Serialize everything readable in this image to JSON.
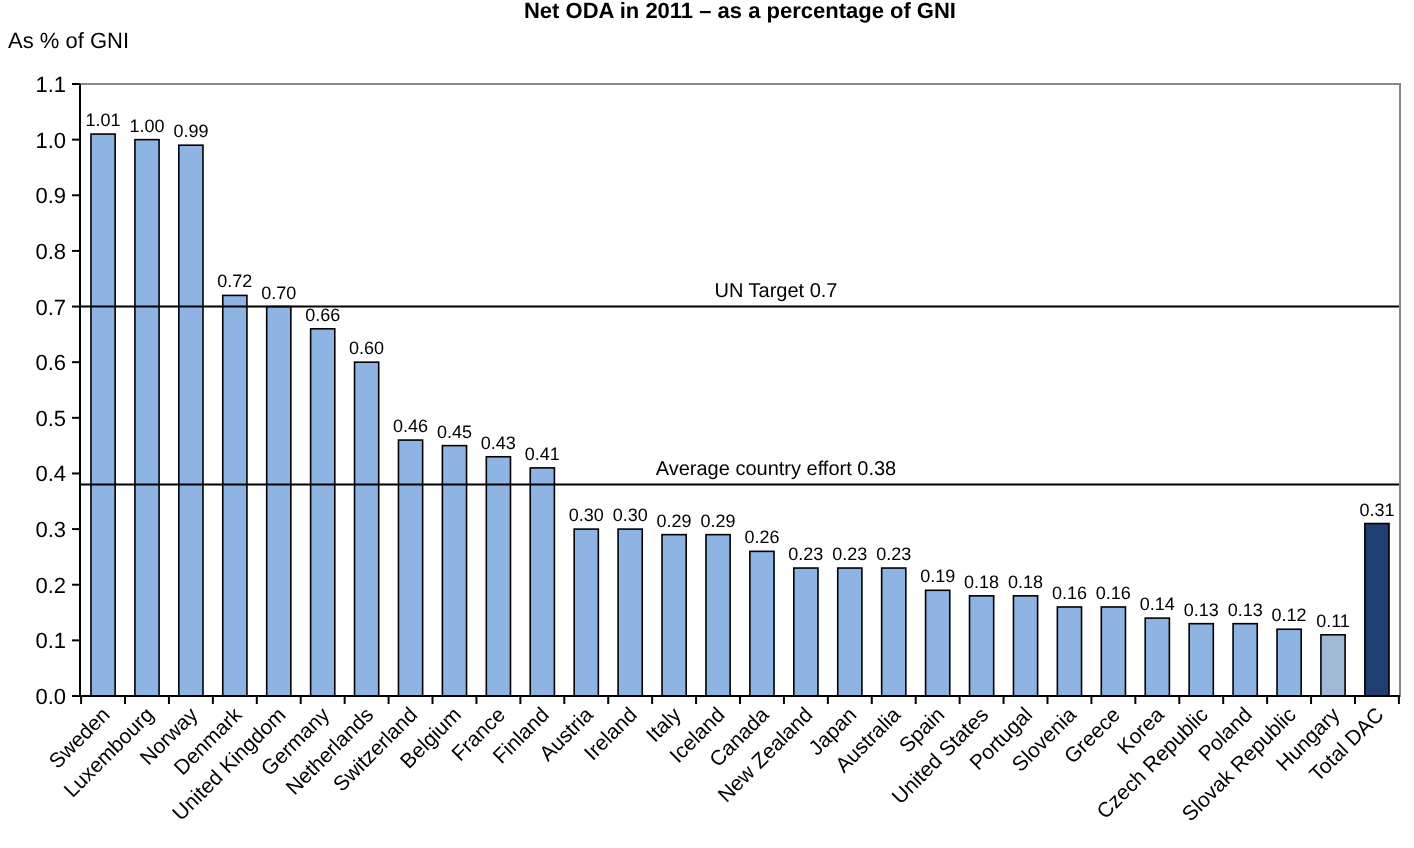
{
  "chart_data": {
    "type": "bar",
    "title": "Net ODA in 2011 – as a percentage of GNI",
    "ylabel": "As % of GNI",
    "categories": [
      "Sweden",
      "Luxembourg",
      "Norway",
      "Denmark",
      "United Kingdom",
      "Germany",
      "Netherlands",
      "Switzerland",
      "Belgium",
      "France",
      "Finland",
      "Austria",
      "Ireland",
      "Italy",
      "Iceland",
      "Canada",
      "New Zealand",
      "Japan",
      "Australia",
      "Spain",
      "United States",
      "Portugal",
      "Slovenia",
      "Greece",
      "Korea",
      "Czech Republic",
      "Poland",
      "Slovak Republic",
      "Hungary",
      "Total DAC"
    ],
    "values": [
      1.01,
      1.0,
      0.99,
      0.72,
      0.7,
      0.66,
      0.6,
      0.46,
      0.45,
      0.43,
      0.41,
      0.3,
      0.3,
      0.29,
      0.29,
      0.26,
      0.23,
      0.23,
      0.23,
      0.19,
      0.18,
      0.18,
      0.16,
      0.16,
      0.14,
      0.13,
      0.13,
      0.12,
      0.11,
      0.31
    ],
    "value_labels": [
      "1.01",
      "1.00",
      "0.99",
      "0.72",
      "0.70",
      "0.66",
      "0.60",
      "0.46",
      "0.45",
      "0.43",
      "0.41",
      "0.30",
      "0.30",
      "0.29",
      "0.29",
      "0.26",
      "0.23",
      "0.23",
      "0.23",
      "0.19",
      "0.18",
      "0.18",
      "0.16",
      "0.16",
      "0.14",
      "0.13",
      "0.13",
      "0.12",
      "0.11",
      "0.31"
    ],
    "colors": [
      "#8db4e2",
      "#8db4e2",
      "#8db4e2",
      "#8db4e2",
      "#8db4e2",
      "#8db4e2",
      "#8db4e2",
      "#8db4e2",
      "#8db4e2",
      "#8db4e2",
      "#8db4e2",
      "#8db4e2",
      "#8db4e2",
      "#8db4e2",
      "#8db4e2",
      "#8db4e2",
      "#8db4e2",
      "#8db4e2",
      "#8db4e2",
      "#8db4e2",
      "#8db4e2",
      "#8db4e2",
      "#8db4e2",
      "#8db4e2",
      "#8db4e2",
      "#8db4e2",
      "#8db4e2",
      "#8db4e2",
      "#9fb8d6",
      "#1f3f73"
    ],
    "ylim": [
      0,
      1.1
    ],
    "yticks": [
      {
        "value": 0,
        "label": "0.0"
      },
      {
        "value": 0.1,
        "label": "0.1"
      },
      {
        "value": 0.2,
        "label": "0.2"
      },
      {
        "value": 0.3,
        "label": "0.3"
      },
      {
        "value": 0.4,
        "label": "0.4"
      },
      {
        "value": 0.5,
        "label": "0.5"
      },
      {
        "value": 0.6,
        "label": "0.6"
      },
      {
        "value": 0.7,
        "label": "0.7"
      },
      {
        "value": 0.8,
        "label": "0.8"
      },
      {
        "value": 0.9,
        "label": "0.9"
      },
      {
        "value": 1.0,
        "label": "1.0"
      },
      {
        "value": 1.1,
        "label": "1.1"
      }
    ],
    "ref_lines": [
      {
        "axis": "y",
        "value": 0.7,
        "label": "UN Target 0.7"
      },
      {
        "axis": "y",
        "value": 0.38,
        "label": "Average country effort 0.38"
      }
    ],
    "grid": false
  }
}
